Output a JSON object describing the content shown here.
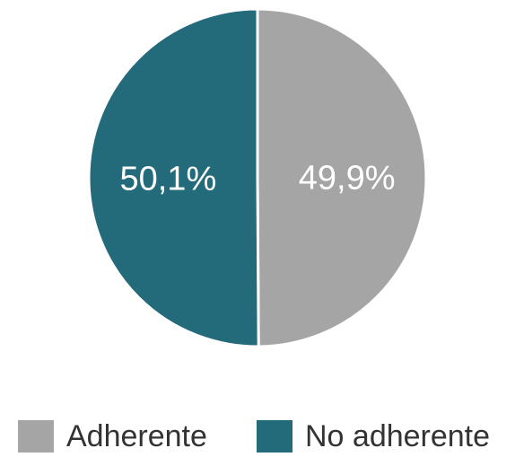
{
  "chart_data": {
    "type": "pie",
    "categories": [
      "Adherente",
      "No adherente"
    ],
    "values": [
      49.9,
      50.1
    ],
    "data_labels": [
      "49,9%",
      "50,1%"
    ],
    "colors": [
      "#a5a5a5",
      "#236a7a"
    ],
    "start": "top, clockwise",
    "legend_position": "bottom"
  },
  "legend": {
    "items": [
      {
        "label": "Adherente",
        "color": "#a5a5a5"
      },
      {
        "label": "No adherente",
        "color": "#236a7a"
      }
    ]
  }
}
